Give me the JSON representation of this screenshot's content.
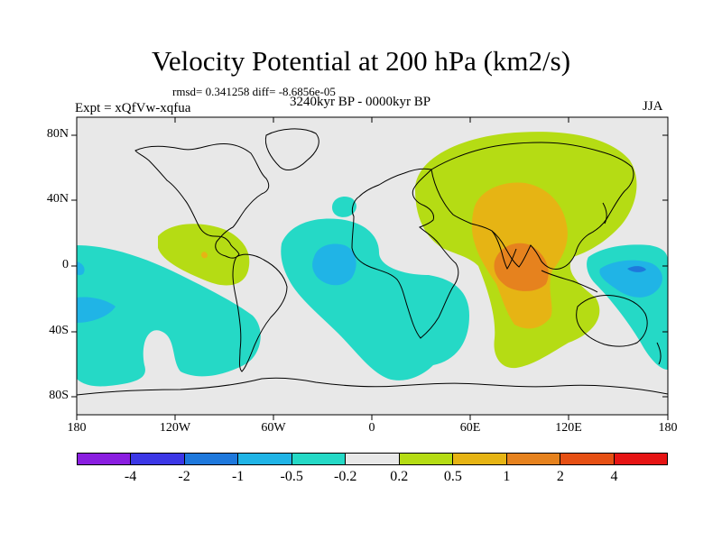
{
  "title": "Velocity Potential at 200 hPa (km2/s)",
  "stats": "rmsd= 0.341258 diff= -8.6856e-05",
  "experiment": "Expt = xQfVw-xqfua",
  "period": "3240kyr BP - 0000kyr BP",
  "season": "JJA",
  "y_axis_labels": [
    "80N",
    "40N",
    "0",
    "40S",
    "80S"
  ],
  "x_axis_labels": [
    "180",
    "120W",
    "60W",
    "0",
    "60E",
    "120E",
    "180"
  ],
  "colorbar": {
    "colors": [
      "#8a1ee0",
      "#3c37e6",
      "#1e78dc",
      "#20b4e6",
      "#25d9c6",
      "#e8e8e8",
      "#b5dc14",
      "#e6b414",
      "#e6821e",
      "#e65014",
      "#e61414"
    ],
    "labels": [
      "-4",
      "-2",
      "-1",
      "-0.5",
      "-0.2",
      "0.2",
      "0.5",
      "1",
      "2",
      "4"
    ]
  }
}
